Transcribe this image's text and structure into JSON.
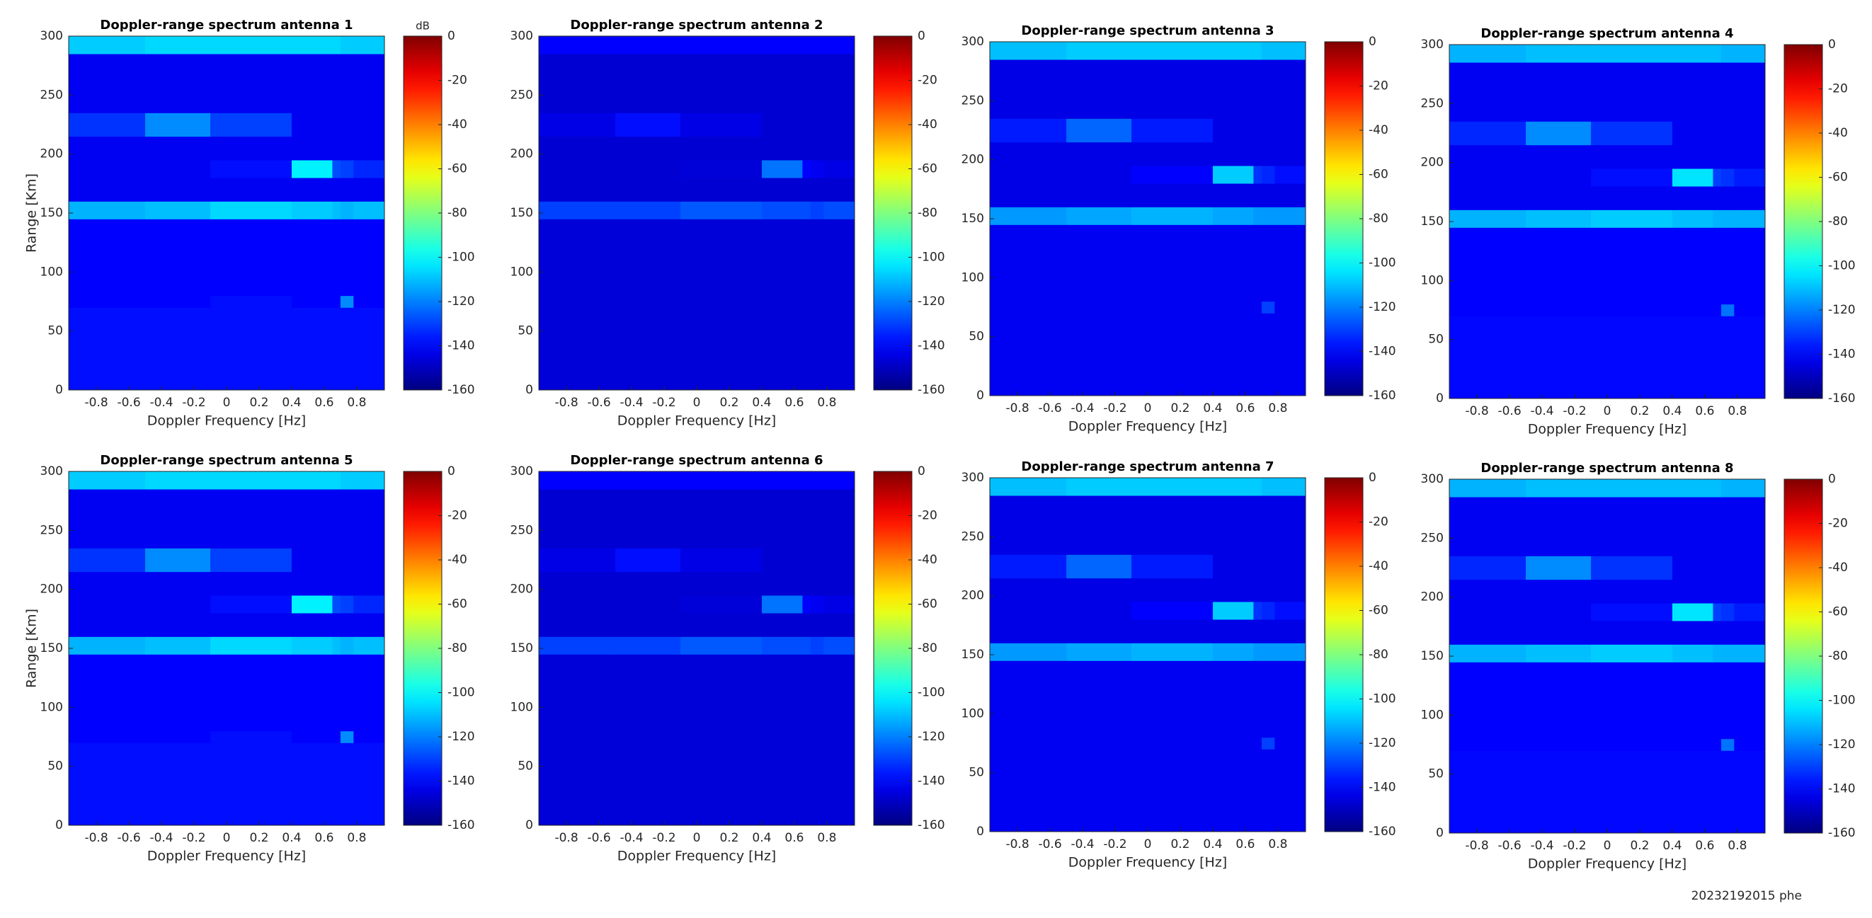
{
  "chart_data": [
    {
      "type": "heatmap",
      "title": "Doppler-range spectrum antenna 1",
      "xlabel": "Doppler Frequency [Hz]",
      "ylabel": "Range [Km]",
      "colorbar_label": "dB",
      "colormap": "jet",
      "xlim": [
        -0.97,
        0.97
      ],
      "ylim": [
        0,
        300
      ],
      "xticks": [
        -0.8,
        -0.6,
        -0.4,
        -0.2,
        0,
        0.2,
        0.4,
        0.6,
        0.8
      ],
      "yticks": [
        0,
        50,
        100,
        150,
        200,
        250,
        300
      ],
      "clim": [
        -160,
        0
      ],
      "cticks": [
        0,
        -20,
        -40,
        -60,
        -80,
        -100,
        -120,
        -140,
        -160
      ],
      "xbins": [
        -0.97,
        -0.5,
        -0.1,
        0.4,
        0.65,
        0.7,
        0.78,
        0.97
      ],
      "ybins": [
        0,
        70,
        80,
        145,
        160,
        180,
        195,
        215,
        235,
        285,
        300
      ],
      "z": [
        [
          -138,
          -138,
          -138,
          -138,
          -138,
          -138,
          -138
        ],
        [
          -140,
          -140,
          -138,
          -140,
          -140,
          -118,
          -140
        ],
        [
          -140,
          -140,
          -140,
          -140,
          -140,
          -140,
          -140
        ],
        [
          -112,
          -110,
          -106,
          -108,
          -110,
          -112,
          -110
        ],
        [
          -142,
          -142,
          -142,
          -142,
          -142,
          -142,
          -142
        ],
        [
          -142,
          -142,
          -138,
          -102,
          -128,
          -130,
          -134
        ],
        [
          -142,
          -142,
          -142,
          -142,
          -142,
          -142,
          -142
        ],
        [
          -132,
          -118,
          -130,
          -142,
          -142,
          -142,
          -142
        ],
        [
          -142,
          -142,
          -142,
          -142,
          -142,
          -142,
          -142
        ],
        [
          -108,
          -106,
          -106,
          -106,
          -106,
          -108,
          -108
        ]
      ]
    },
    {
      "type": "heatmap",
      "title": "Doppler-range spectrum antenna 2",
      "xlabel": "Doppler Frequency [Hz]",
      "colormap": "jet",
      "xlim": [
        -0.97,
        0.97
      ],
      "ylim": [
        0,
        300
      ],
      "xticks": [
        -0.8,
        -0.6,
        -0.4,
        -0.2,
        0,
        0.2,
        0.4,
        0.6,
        0.8
      ],
      "yticks": [
        0,
        50,
        100,
        150,
        200,
        250,
        300
      ],
      "clim": [
        -160,
        0
      ],
      "cticks": [
        0,
        -20,
        -40,
        -60,
        -80,
        -100,
        -120,
        -140,
        -160
      ],
      "xbins": [
        -0.97,
        -0.5,
        -0.1,
        0.4,
        0.65,
        0.7,
        0.78,
        0.97
      ],
      "ybins": [
        0,
        70,
        80,
        145,
        160,
        180,
        195,
        215,
        235,
        285,
        300
      ],
      "z": [
        [
          -146,
          -146,
          -146,
          -146,
          -146,
          -146,
          -146
        ],
        [
          -146,
          -146,
          -146,
          -146,
          -146,
          -146,
          -146
        ],
        [
          -146,
          -146,
          -146,
          -146,
          -146,
          -146,
          -146
        ],
        [
          -130,
          -130,
          -126,
          -128,
          -128,
          -130,
          -128
        ],
        [
          -147,
          -147,
          -147,
          -147,
          -147,
          -147,
          -147
        ],
        [
          -147,
          -147,
          -146,
          -122,
          -140,
          -142,
          -144
        ],
        [
          -147,
          -147,
          -147,
          -147,
          -147,
          -147,
          -147
        ],
        [
          -144,
          -138,
          -144,
          -147,
          -147,
          -147,
          -147
        ],
        [
          -147,
          -147,
          -147,
          -147,
          -147,
          -147,
          -147
        ],
        [
          -140,
          -140,
          -140,
          -140,
          -140,
          -140,
          -140
        ]
      ]
    },
    {
      "type": "heatmap",
      "title": "Doppler-range spectrum antenna 3",
      "xlabel": "Doppler Frequency [Hz]",
      "colormap": "jet",
      "xlim": [
        -0.97,
        0.97
      ],
      "ylim": [
        0,
        300
      ],
      "xticks": [
        -0.8,
        -0.6,
        -0.4,
        -0.2,
        0,
        0.2,
        0.4,
        0.6,
        0.8
      ],
      "yticks": [
        0,
        50,
        100,
        150,
        200,
        250,
        300
      ],
      "clim": [
        -160,
        0
      ],
      "cticks": [
        0,
        -20,
        -40,
        -60,
        -80,
        -100,
        -120,
        -140,
        -160
      ],
      "xbins": [
        -0.97,
        -0.5,
        -0.1,
        0.4,
        0.65,
        0.7,
        0.78,
        0.97
      ],
      "ybins": [
        0,
        70,
        80,
        145,
        160,
        180,
        195,
        215,
        235,
        285,
        300
      ],
      "z": [
        [
          -142,
          -142,
          -142,
          -142,
          -142,
          -142,
          -142
        ],
        [
          -142,
          -142,
          -142,
          -142,
          -142,
          -130,
          -142
        ],
        [
          -142,
          -142,
          -142,
          -142,
          -142,
          -142,
          -142
        ],
        [
          -116,
          -114,
          -112,
          -114,
          -116,
          -116,
          -116
        ],
        [
          -144,
          -144,
          -144,
          -144,
          -144,
          -144,
          -144
        ],
        [
          -144,
          -144,
          -140,
          -108,
          -132,
          -134,
          -138
        ],
        [
          -144,
          -144,
          -144,
          -144,
          -144,
          -144,
          -144
        ],
        [
          -136,
          -124,
          -136,
          -144,
          -144,
          -144,
          -144
        ],
        [
          -144,
          -144,
          -144,
          -144,
          -144,
          -144,
          -144
        ],
        [
          -110,
          -108,
          -108,
          -108,
          -108,
          -110,
          -110
        ]
      ]
    },
    {
      "type": "heatmap",
      "title": "Doppler-range spectrum antenna 4",
      "xlabel": "Doppler Frequency [Hz]",
      "colormap": "jet",
      "xlim": [
        -0.97,
        0.97
      ],
      "ylim": [
        0,
        300
      ],
      "xticks": [
        -0.8,
        -0.6,
        -0.4,
        -0.2,
        0,
        0.2,
        0.4,
        0.6,
        0.8
      ],
      "yticks": [
        0,
        50,
        100,
        150,
        200,
        250,
        300
      ],
      "clim": [
        -160,
        0
      ],
      "cticks": [
        0,
        -20,
        -40,
        -60,
        -80,
        -100,
        -120,
        -140,
        -160
      ],
      "xbins": [
        -0.97,
        -0.5,
        -0.1,
        0.4,
        0.65,
        0.7,
        0.78,
        0.97
      ],
      "ybins": [
        0,
        70,
        80,
        145,
        160,
        180,
        195,
        215,
        235,
        285,
        300
      ],
      "z": [
        [
          -139,
          -139,
          -139,
          -139,
          -139,
          -139,
          -139
        ],
        [
          -140,
          -140,
          -140,
          -140,
          -140,
          -122,
          -140
        ],
        [
          -140,
          -140,
          -140,
          -140,
          -140,
          -140,
          -140
        ],
        [
          -112,
          -110,
          -108,
          -110,
          -112,
          -112,
          -112
        ],
        [
          -142,
          -142,
          -142,
          -142,
          -142,
          -142,
          -142
        ],
        [
          -142,
          -142,
          -138,
          -104,
          -130,
          -132,
          -136
        ],
        [
          -142,
          -142,
          -142,
          -142,
          -142,
          -142,
          -142
        ],
        [
          -134,
          -118,
          -132,
          -142,
          -142,
          -142,
          -142
        ],
        [
          -142,
          -142,
          -142,
          -142,
          -142,
          -142,
          -142
        ],
        [
          -112,
          -110,
          -110,
          -110,
          -110,
          -112,
          -112
        ]
      ]
    },
    {
      "type": "heatmap",
      "title": "Doppler-range spectrum antenna 5",
      "xlabel": "Doppler Frequency [Hz]",
      "ylabel": "Range [Km]",
      "colormap": "jet",
      "xlim": [
        -0.97,
        0.97
      ],
      "ylim": [
        0,
        300
      ],
      "xticks": [
        -0.8,
        -0.6,
        -0.4,
        -0.2,
        0,
        0.2,
        0.4,
        0.6,
        0.8
      ],
      "yticks": [
        0,
        50,
        100,
        150,
        200,
        250,
        300
      ],
      "clim": [
        -160,
        0
      ],
      "cticks": [
        0,
        -20,
        -40,
        -60,
        -80,
        -100,
        -120,
        -140,
        -160
      ],
      "xbins": [
        -0.97,
        -0.5,
        -0.1,
        0.4,
        0.65,
        0.7,
        0.78,
        0.97
      ],
      "ybins": [
        0,
        70,
        80,
        145,
        160,
        180,
        195,
        215,
        235,
        285,
        300
      ],
      "z": [
        [
          -138,
          -138,
          -138,
          -138,
          -138,
          -138,
          -138
        ],
        [
          -140,
          -140,
          -138,
          -140,
          -140,
          -118,
          -140
        ],
        [
          -140,
          -140,
          -140,
          -140,
          -140,
          -140,
          -140
        ],
        [
          -112,
          -110,
          -106,
          -108,
          -110,
          -112,
          -110
        ],
        [
          -142,
          -142,
          -142,
          -142,
          -142,
          -142,
          -142
        ],
        [
          -142,
          -142,
          -138,
          -102,
          -128,
          -130,
          -134
        ],
        [
          -142,
          -142,
          -142,
          -142,
          -142,
          -142,
          -142
        ],
        [
          -132,
          -118,
          -130,
          -142,
          -142,
          -142,
          -142
        ],
        [
          -142,
          -142,
          -142,
          -142,
          -142,
          -142,
          -142
        ],
        [
          -108,
          -106,
          -106,
          -106,
          -106,
          -108,
          -108
        ]
      ]
    },
    {
      "type": "heatmap",
      "title": "Doppler-range spectrum antenna 6",
      "xlabel": "Doppler Frequency [Hz]",
      "colormap": "jet",
      "xlim": [
        -0.97,
        0.97
      ],
      "ylim": [
        0,
        300
      ],
      "xticks": [
        -0.8,
        -0.6,
        -0.4,
        -0.2,
        0,
        0.2,
        0.4,
        0.6,
        0.8
      ],
      "yticks": [
        0,
        50,
        100,
        150,
        200,
        250,
        300
      ],
      "clim": [
        -160,
        0
      ],
      "cticks": [
        0,
        -20,
        -40,
        -60,
        -80,
        -100,
        -120,
        -140,
        -160
      ],
      "xbins": [
        -0.97,
        -0.5,
        -0.1,
        0.4,
        0.65,
        0.7,
        0.78,
        0.97
      ],
      "ybins": [
        0,
        70,
        80,
        145,
        160,
        180,
        195,
        215,
        235,
        285,
        300
      ],
      "z": [
        [
          -146,
          -146,
          -146,
          -146,
          -146,
          -146,
          -146
        ],
        [
          -146,
          -146,
          -146,
          -146,
          -146,
          -146,
          -146
        ],
        [
          -146,
          -146,
          -146,
          -146,
          -146,
          -146,
          -146
        ],
        [
          -130,
          -130,
          -126,
          -128,
          -128,
          -130,
          -128
        ],
        [
          -147,
          -147,
          -147,
          -147,
          -147,
          -147,
          -147
        ],
        [
          -147,
          -147,
          -146,
          -122,
          -140,
          -142,
          -144
        ],
        [
          -147,
          -147,
          -147,
          -147,
          -147,
          -147,
          -147
        ],
        [
          -144,
          -138,
          -144,
          -147,
          -147,
          -147,
          -147
        ],
        [
          -147,
          -147,
          -147,
          -147,
          -147,
          -147,
          -147
        ],
        [
          -140,
          -140,
          -140,
          -140,
          -140,
          -140,
          -140
        ]
      ]
    },
    {
      "type": "heatmap",
      "title": "Doppler-range spectrum antenna 7",
      "xlabel": "Doppler Frequency [Hz]",
      "colormap": "jet",
      "xlim": [
        -0.97,
        0.97
      ],
      "ylim": [
        0,
        300
      ],
      "xticks": [
        -0.8,
        -0.6,
        -0.4,
        -0.2,
        0,
        0.2,
        0.4,
        0.6,
        0.8
      ],
      "yticks": [
        0,
        50,
        100,
        150,
        200,
        250,
        300
      ],
      "clim": [
        -160,
        0
      ],
      "cticks": [
        0,
        -20,
        -40,
        -60,
        -80,
        -100,
        -120,
        -140,
        -160
      ],
      "xbins": [
        -0.97,
        -0.5,
        -0.1,
        0.4,
        0.65,
        0.7,
        0.78,
        0.97
      ],
      "ybins": [
        0,
        70,
        80,
        145,
        160,
        180,
        195,
        215,
        235,
        285,
        300
      ],
      "z": [
        [
          -142,
          -142,
          -142,
          -142,
          -142,
          -142,
          -142
        ],
        [
          -142,
          -142,
          -142,
          -142,
          -142,
          -130,
          -142
        ],
        [
          -142,
          -142,
          -142,
          -142,
          -142,
          -142,
          -142
        ],
        [
          -116,
          -114,
          -112,
          -114,
          -116,
          -116,
          -116
        ],
        [
          -144,
          -144,
          -144,
          -144,
          -144,
          -144,
          -144
        ],
        [
          -144,
          -144,
          -140,
          -108,
          -132,
          -134,
          -138
        ],
        [
          -144,
          -144,
          -144,
          -144,
          -144,
          -144,
          -144
        ],
        [
          -136,
          -124,
          -136,
          -144,
          -144,
          -144,
          -144
        ],
        [
          -144,
          -144,
          -144,
          -144,
          -144,
          -144,
          -144
        ],
        [
          -110,
          -108,
          -108,
          -108,
          -108,
          -110,
          -110
        ]
      ]
    },
    {
      "type": "heatmap",
      "title": "Doppler-range spectrum antenna 8",
      "xlabel": "Doppler Frequency [Hz]",
      "colormap": "jet",
      "xlim": [
        -0.97,
        0.97
      ],
      "ylim": [
        0,
        300
      ],
      "xticks": [
        -0.8,
        -0.6,
        -0.4,
        -0.2,
        0,
        0.2,
        0.4,
        0.6,
        0.8
      ],
      "yticks": [
        0,
        50,
        100,
        150,
        200,
        250,
        300
      ],
      "clim": [
        -160,
        0
      ],
      "cticks": [
        0,
        -20,
        -40,
        -60,
        -80,
        -100,
        -120,
        -140,
        -160
      ],
      "xbins": [
        -0.97,
        -0.5,
        -0.1,
        0.4,
        0.65,
        0.7,
        0.78,
        0.97
      ],
      "ybins": [
        0,
        70,
        80,
        145,
        160,
        180,
        195,
        215,
        235,
        285,
        300
      ],
      "z": [
        [
          -139,
          -139,
          -139,
          -139,
          -139,
          -139,
          -139
        ],
        [
          -140,
          -140,
          -140,
          -140,
          -140,
          -122,
          -140
        ],
        [
          -140,
          -140,
          -140,
          -140,
          -140,
          -140,
          -140
        ],
        [
          -112,
          -110,
          -108,
          -110,
          -112,
          -112,
          -112
        ],
        [
          -142,
          -142,
          -142,
          -142,
          -142,
          -142,
          -142
        ],
        [
          -142,
          -142,
          -138,
          -104,
          -130,
          -132,
          -136
        ],
        [
          -142,
          -142,
          -142,
          -142,
          -142,
          -142,
          -142
        ],
        [
          -134,
          -118,
          -132,
          -142,
          -142,
          -142,
          -142
        ],
        [
          -142,
          -142,
          -142,
          -142,
          -142,
          -142,
          -142
        ],
        [
          -112,
          -110,
          -110,
          -110,
          -110,
          -112,
          -112
        ]
      ]
    }
  ],
  "footer": "20232192015 phe"
}
